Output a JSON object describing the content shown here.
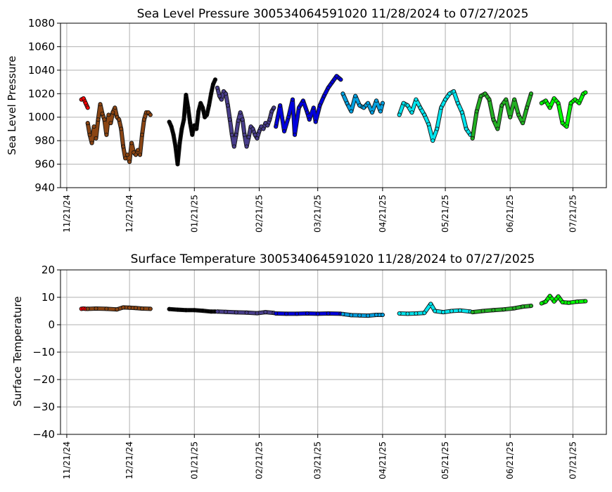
{
  "chart_data": [
    {
      "type": "scatter",
      "title": "Sea Level Pressure 300534064591020  11/28/2024 to 07/27/2025",
      "ylabel": "Sea Level Pressure",
      "xlabel": "",
      "ylim": [
        940,
        1080
      ],
      "yticks": [
        940,
        960,
        980,
        1000,
        1020,
        1040,
        1060,
        1080
      ],
      "xlim": [
        "2024-11-18",
        "2025-08-06"
      ],
      "xticks": [
        {
          "date": "2024-11-21",
          "label": "11/21/24"
        },
        {
          "date": "2024-12-21",
          "label": "12/21/24"
        },
        {
          "date": "2025-01-21",
          "label": "01/21/25"
        },
        {
          "date": "2025-02-21",
          "label": "02/21/25"
        },
        {
          "date": "2025-03-21",
          "label": "03/21/25"
        },
        {
          "date": "2025-04-21",
          "label": "04/21/25"
        },
        {
          "date": "2025-05-21",
          "label": "05/21/25"
        },
        {
          "date": "2025-06-21",
          "label": "06/21/25"
        },
        {
          "date": "2025-07-21",
          "label": "07/21/25"
        }
      ],
      "grid": true,
      "series": [
        {
          "color": "#ff0000",
          "x": [
            "2024-11-28",
            "2024-11-29",
            "2024-11-30",
            "2024-12-01"
          ],
          "y": [
            1015,
            1016,
            1012,
            1008
          ]
        },
        {
          "color": "#8b4513",
          "x": [
            "2024-12-01",
            "2024-12-02",
            "2024-12-03",
            "2024-12-04",
            "2024-12-05",
            "2024-12-06",
            "2024-12-07",
            "2024-12-08",
            "2024-12-09",
            "2024-12-10",
            "2024-12-11",
            "2024-12-12",
            "2024-12-13",
            "2024-12-14",
            "2024-12-15",
            "2024-12-16",
            "2024-12-17",
            "2024-12-18",
            "2024-12-19",
            "2024-12-20",
            "2024-12-21",
            "2024-12-22",
            "2024-12-23",
            "2024-12-24",
            "2024-12-25",
            "2024-12-26",
            "2024-12-27",
            "2024-12-28",
            "2024-12-29",
            "2024-12-30",
            "2024-12-31"
          ],
          "y": [
            995,
            985,
            978,
            992,
            982,
            998,
            1011,
            1003,
            998,
            985,
            1002,
            995,
            1004,
            1008,
            1000,
            998,
            990,
            975,
            965,
            968,
            962,
            978,
            970,
            968,
            972,
            968,
            985,
            998,
            1004,
            1004,
            1002
          ]
        },
        {
          "color": "#000000",
          "x": [
            "2025-01-09",
            "2025-01-10",
            "2025-01-11",
            "2025-01-12",
            "2025-01-13",
            "2025-01-14",
            "2025-01-15",
            "2025-01-16",
            "2025-01-17",
            "2025-01-18",
            "2025-01-19",
            "2025-01-20",
            "2025-01-21",
            "2025-01-22",
            "2025-01-23",
            "2025-01-24",
            "2025-01-25",
            "2025-01-26",
            "2025-01-27",
            "2025-01-28",
            "2025-01-29",
            "2025-01-30",
            "2025-01-31"
          ],
          "y": [
            996,
            992,
            985,
            975,
            960,
            978,
            990,
            998,
            1019,
            1008,
            995,
            985,
            993,
            990,
            1005,
            1012,
            1008,
            1000,
            1002,
            1010,
            1020,
            1028,
            1032
          ]
        },
        {
          "color": "#483d8b",
          "x": [
            "2025-02-01",
            "2025-02-02",
            "2025-02-03",
            "2025-02-04",
            "2025-02-05",
            "2025-02-06",
            "2025-02-07",
            "2025-02-08",
            "2025-02-09",
            "2025-02-10",
            "2025-02-11",
            "2025-02-12",
            "2025-02-13",
            "2025-02-14",
            "2025-02-15",
            "2025-02-16",
            "2025-02-17",
            "2025-02-18",
            "2025-02-19",
            "2025-02-20",
            "2025-02-21",
            "2025-02-22",
            "2025-02-23",
            "2025-02-24",
            "2025-02-25",
            "2025-02-26",
            "2025-02-27",
            "2025-02-28"
          ],
          "y": [
            1025,
            1018,
            1015,
            1022,
            1020,
            1010,
            998,
            985,
            975,
            985,
            997,
            1004,
            998,
            985,
            975,
            983,
            992,
            990,
            985,
            982,
            988,
            992,
            990,
            995,
            993,
            998,
            1005,
            1008
          ]
        },
        {
          "color": "#0000dd",
          "x": [
            "2025-03-01",
            "2025-03-03",
            "2025-03-05",
            "2025-03-07",
            "2025-03-09",
            "2025-03-10",
            "2025-03-12",
            "2025-03-14",
            "2025-03-16",
            "2025-03-17",
            "2025-03-19",
            "2025-03-20",
            "2025-03-22",
            "2025-03-24",
            "2025-03-26",
            "2025-03-28",
            "2025-03-30",
            "2025-04-01"
          ],
          "y": [
            992,
            1010,
            988,
            1000,
            1015,
            985,
            1008,
            1014,
            1004,
            998,
            1008,
            996,
            1010,
            1018,
            1025,
            1030,
            1035,
            1032
          ]
        },
        {
          "color": "#00a0e0",
          "x": [
            "2025-04-02",
            "2025-04-04",
            "2025-04-06",
            "2025-04-08",
            "2025-04-10",
            "2025-04-12",
            "2025-04-14",
            "2025-04-16",
            "2025-04-18",
            "2025-04-20",
            "2025-04-21"
          ],
          "y": [
            1020,
            1012,
            1005,
            1018,
            1010,
            1008,
            1012,
            1004,
            1014,
            1005,
            1012
          ]
        },
        {
          "color": "#00e5ee",
          "x": [
            "2025-04-29",
            "2025-05-01",
            "2025-05-03",
            "2025-05-05",
            "2025-05-07",
            "2025-05-09",
            "2025-05-11",
            "2025-05-13",
            "2025-05-15",
            "2025-05-17",
            "2025-05-19",
            "2025-05-21",
            "2025-05-23",
            "2025-05-25",
            "2025-05-27",
            "2025-05-29",
            "2025-05-31",
            "2025-06-02"
          ],
          "y": [
            1002,
            1012,
            1010,
            1004,
            1015,
            1008,
            1002,
            994,
            980,
            990,
            1008,
            1015,
            1020,
            1022,
            1012,
            1004,
            990,
            985
          ]
        },
        {
          "color": "#22b022",
          "x": [
            "2025-06-03",
            "2025-06-05",
            "2025-06-07",
            "2025-06-09",
            "2025-06-11",
            "2025-06-13",
            "2025-06-15",
            "2025-06-17",
            "2025-06-19",
            "2025-06-21",
            "2025-06-23",
            "2025-06-25",
            "2025-06-27",
            "2025-06-29",
            "2025-07-01"
          ],
          "y": [
            982,
            1005,
            1018,
            1020,
            1015,
            998,
            990,
            1010,
            1015,
            1000,
            1015,
            1002,
            995,
            1008,
            1020
          ]
        },
        {
          "color": "#00ff00",
          "x": [
            "2025-07-06",
            "2025-07-08",
            "2025-07-10",
            "2025-07-12",
            "2025-07-14",
            "2025-07-16",
            "2025-07-18",
            "2025-07-20",
            "2025-07-22",
            "2025-07-24",
            "2025-07-26",
            "2025-07-27"
          ],
          "y": [
            1012,
            1014,
            1008,
            1016,
            1012,
            995,
            992,
            1012,
            1015,
            1012,
            1020,
            1021
          ]
        }
      ]
    },
    {
      "type": "scatter",
      "title": "Surface Temperature 300534064591020  11/28/2024 to 07/27/2025",
      "ylabel": "Surface Temperature",
      "xlabel": "",
      "ylim": [
        -40,
        20
      ],
      "yticks": [
        -40,
        -30,
        -20,
        -10,
        0,
        10,
        20
      ],
      "xlim": [
        "2024-11-18",
        "2025-08-06"
      ],
      "xticks": [
        {
          "date": "2024-11-21",
          "label": "11/21/24"
        },
        {
          "date": "2024-12-21",
          "label": "12/21/24"
        },
        {
          "date": "2025-01-21",
          "label": "01/21/25"
        },
        {
          "date": "2025-02-21",
          "label": "02/21/25"
        },
        {
          "date": "2025-03-21",
          "label": "03/21/25"
        },
        {
          "date": "2025-04-21",
          "label": "04/21/25"
        },
        {
          "date": "2025-05-21",
          "label": "05/21/25"
        },
        {
          "date": "2025-06-21",
          "label": "06/21/25"
        },
        {
          "date": "2025-07-21",
          "label": "07/21/25"
        }
      ],
      "grid": true,
      "series": [
        {
          "color": "#ff0000",
          "x": [
            "2024-11-28",
            "2024-11-29",
            "2024-11-30",
            "2024-12-01"
          ],
          "y": [
            5.8,
            5.9,
            5.8,
            5.8
          ]
        },
        {
          "color": "#8b4513",
          "x": [
            "2024-12-01",
            "2024-12-05",
            "2024-12-10",
            "2024-12-15",
            "2024-12-18",
            "2024-12-21",
            "2024-12-24",
            "2024-12-27",
            "2024-12-31"
          ],
          "y": [
            5.8,
            5.9,
            5.8,
            5.6,
            6.3,
            6.2,
            6.1,
            5.9,
            5.8
          ]
        },
        {
          "color": "#000000",
          "x": [
            "2025-01-09",
            "2025-01-13",
            "2025-01-17",
            "2025-01-21",
            "2025-01-25",
            "2025-01-29",
            "2025-01-31"
          ],
          "y": [
            5.7,
            5.5,
            5.3,
            5.3,
            5.1,
            4.8,
            4.8
          ]
        },
        {
          "color": "#483d8b",
          "x": [
            "2025-02-01",
            "2025-02-05",
            "2025-02-10",
            "2025-02-15",
            "2025-02-20",
            "2025-02-24",
            "2025-02-28"
          ],
          "y": [
            4.8,
            4.7,
            4.5,
            4.4,
            4.2,
            4.6,
            4.3
          ]
        },
        {
          "color": "#0000dd",
          "x": [
            "2025-03-01",
            "2025-03-06",
            "2025-03-11",
            "2025-03-16",
            "2025-03-21",
            "2025-03-26",
            "2025-04-01"
          ],
          "y": [
            4.1,
            4.0,
            4.0,
            4.1,
            4.0,
            4.1,
            4.0
          ]
        },
        {
          "color": "#00a0e0",
          "x": [
            "2025-04-02",
            "2025-04-06",
            "2025-04-10",
            "2025-04-14",
            "2025-04-18",
            "2025-04-21"
          ],
          "y": [
            3.9,
            3.5,
            3.4,
            3.3,
            3.6,
            3.6
          ]
        },
        {
          "color": "#00e5ee",
          "x": [
            "2025-04-29",
            "2025-05-03",
            "2025-05-07",
            "2025-05-11",
            "2025-05-14",
            "2025-05-16",
            "2025-05-20",
            "2025-05-24",
            "2025-05-28",
            "2025-06-02"
          ],
          "y": [
            4.1,
            4.0,
            4.1,
            4.3,
            7.6,
            5.0,
            4.6,
            5.0,
            5.2,
            4.8
          ]
        },
        {
          "color": "#22b022",
          "x": [
            "2025-06-03",
            "2025-06-08",
            "2025-06-13",
            "2025-06-18",
            "2025-06-23",
            "2025-06-27",
            "2025-07-01"
          ],
          "y": [
            4.6,
            5.0,
            5.3,
            5.6,
            6.0,
            6.6,
            6.9
          ]
        },
        {
          "color": "#00ff00",
          "x": [
            "2025-07-06",
            "2025-07-08",
            "2025-07-10",
            "2025-07-12",
            "2025-07-14",
            "2025-07-16",
            "2025-07-19",
            "2025-07-23",
            "2025-07-27"
          ],
          "y": [
            7.8,
            8.4,
            10.5,
            8.5,
            10.3,
            8.2,
            8.0,
            8.4,
            8.6
          ]
        }
      ]
    }
  ]
}
